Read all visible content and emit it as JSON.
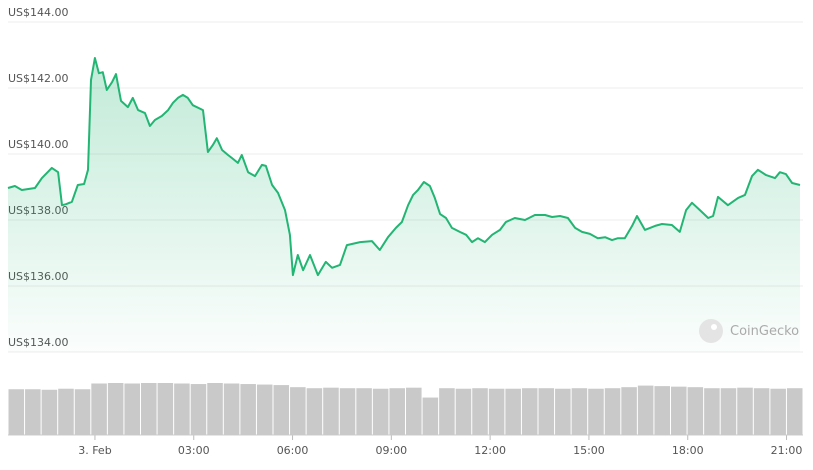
{
  "chart_data": [
    {
      "type": "line",
      "color": "#22b573",
      "x": [
        -2.64,
        -2.43,
        -2.22,
        -1.82,
        -1.61,
        -1.31,
        -1.12,
        -1.0,
        -0.88,
        -0.7,
        -0.52,
        -0.33,
        -0.21,
        -0.12,
        0,
        0.12,
        0.24,
        0.36,
        0.52,
        0.64,
        0.79,
        1.0,
        1.15,
        1.31,
        1.52,
        1.67,
        1.82,
        2.03,
        2.22,
        2.37,
        2.52,
        2.67,
        2.82,
        2.97,
        3.28,
        3.43,
        3.58,
        3.7,
        3.86,
        4.04,
        4.16,
        4.34,
        4.46,
        4.65,
        4.86,
        5.07,
        5.19,
        5.38,
        5.56,
        5.77,
        5.92,
        6.01,
        6.16,
        6.32,
        6.53,
        6.77,
        7.01,
        7.2,
        7.44,
        7.65,
        8.05,
        8.41,
        8.65,
        8.9,
        9.14,
        9.32,
        9.51,
        9.66,
        9.81,
        9.99,
        10.17,
        10.32,
        10.48,
        10.66,
        10.84,
        11.08,
        11.27,
        11.45,
        11.63,
        11.84,
        12.06,
        12.3,
        12.48,
        12.75,
        13.06,
        13.36,
        13.67,
        13.88,
        14.12,
        14.36,
        14.58,
        14.79,
        15.03,
        15.27,
        15.49,
        15.7,
        15.88,
        16.09,
        16.31,
        16.46,
        16.7,
        17.01,
        17.22,
        17.52,
        17.76,
        17.95,
        18.13,
        18.37,
        18.62,
        18.77,
        18.92,
        19.22,
        19.53,
        19.74,
        19.95,
        20.13,
        20.38,
        20.65,
        20.8,
        20.98,
        21.17,
        21.41
      ],
      "values": [
        138.97,
        139.03,
        138.91,
        138.97,
        139.27,
        139.58,
        139.45,
        138.45,
        138.48,
        138.55,
        139.06,
        139.09,
        139.52,
        142.24,
        142.91,
        142.45,
        142.48,
        141.94,
        142.18,
        142.42,
        141.61,
        141.42,
        141.7,
        141.33,
        141.24,
        140.85,
        141.03,
        141.15,
        141.33,
        141.55,
        141.7,
        141.79,
        141.7,
        141.48,
        141.33,
        140.06,
        140.27,
        140.48,
        140.12,
        139.97,
        139.88,
        139.73,
        139.97,
        139.45,
        139.33,
        139.67,
        139.64,
        139.06,
        138.82,
        138.3,
        137.55,
        136.33,
        136.94,
        136.48,
        136.94,
        136.33,
        136.73,
        136.55,
        136.64,
        137.24,
        137.33,
        137.36,
        137.09,
        137.48,
        137.76,
        137.94,
        138.45,
        138.76,
        138.91,
        139.15,
        139.03,
        138.67,
        138.18,
        138.06,
        137.76,
        137.64,
        137.55,
        137.33,
        137.45,
        137.33,
        137.55,
        137.7,
        137.94,
        138.06,
        138.0,
        138.15,
        138.15,
        138.09,
        138.12,
        138.06,
        137.76,
        137.64,
        137.58,
        137.45,
        137.48,
        137.39,
        137.45,
        137.45,
        137.82,
        138.12,
        137.7,
        137.82,
        137.88,
        137.85,
        137.64,
        138.3,
        138.52,
        138.3,
        138.06,
        138.12,
        138.7,
        138.45,
        138.67,
        138.76,
        139.33,
        139.52,
        139.36,
        139.27,
        139.45,
        139.39,
        139.12,
        139.06
      ],
      "xlim": [
        -2.64,
        21.5
      ],
      "xticks": [
        {
          "value": 0,
          "label": "3. Feb"
        },
        {
          "value": 3,
          "label": "03:00"
        },
        {
          "value": 6,
          "label": "06:00"
        },
        {
          "value": 9,
          "label": "09:00"
        },
        {
          "value": 12,
          "label": "12:00"
        },
        {
          "value": 15,
          "label": "15:00"
        },
        {
          "value": 18,
          "label": "18:00"
        },
        {
          "value": 21,
          "label": "21:00"
        }
      ],
      "ylim": [
        134,
        144
      ],
      "yticks": [
        {
          "value": 144,
          "label": "US$144.00"
        },
        {
          "value": 142,
          "label": "US$142.00"
        },
        {
          "value": 140,
          "label": "US$140.00"
        },
        {
          "value": 138,
          "label": "US$138.00"
        },
        {
          "value": 136,
          "label": "US$136.00"
        },
        {
          "value": 134,
          "label": "US$134.00"
        }
      ],
      "grid": true,
      "watermark": "CoinGecko"
    },
    {
      "type": "bar",
      "color": "#c9c9c9",
      "ylim": [
        0,
        100
      ],
      "values": [
        88,
        88,
        87,
        89,
        88,
        99,
        100,
        99,
        100,
        100,
        99,
        98,
        100,
        99,
        98,
        97,
        96,
        92,
        90,
        91,
        90,
        90,
        89,
        90,
        91,
        72,
        90,
        89,
        90,
        89,
        89,
        90,
        90,
        89,
        90,
        89,
        90,
        92,
        95,
        94,
        93,
        92,
        90,
        90,
        91,
        90,
        89,
        90
      ]
    }
  ]
}
